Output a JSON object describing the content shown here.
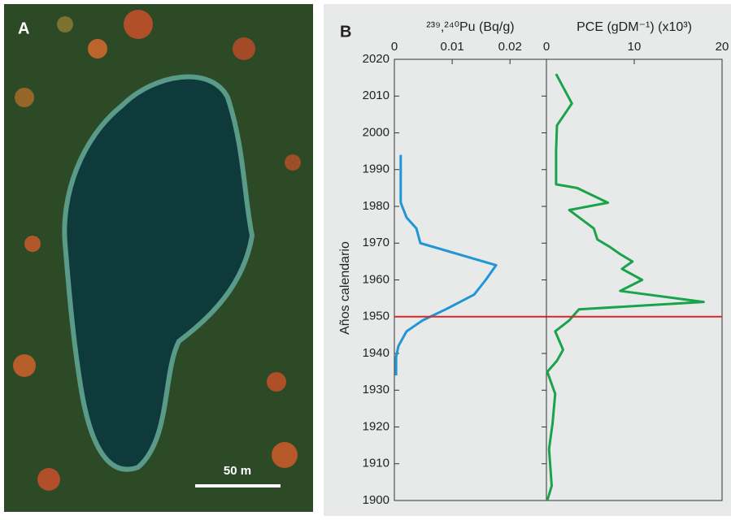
{
  "panel_a": {
    "label": "A",
    "scale_bar": "50 m"
  },
  "panel_b_label": "B",
  "chart_data": [
    {
      "type": "line",
      "orientation": "horizontal",
      "title": "²³⁹,²⁴⁰Pu (Bq/g)",
      "ylabel": "Años calendario",
      "x": [
        1994,
        1981,
        1977,
        1974,
        1970,
        1964,
        1960,
        1956,
        1952,
        1949,
        1946,
        1942,
        1939,
        1934
      ],
      "values": [
        0.0011,
        0.0011,
        0.0021,
        0.0038,
        0.0045,
        0.0176,
        0.0158,
        0.0138,
        0.0089,
        0.0049,
        0.0021,
        0.0007,
        0.0003,
        0.0003
      ],
      "color": "#1f96d6",
      "xlim": [
        0,
        0.0263
      ],
      "xticks": [
        0,
        0.01,
        0.02
      ],
      "ylim": [
        1900,
        2020
      ],
      "yticks": [
        1900,
        1910,
        1920,
        1930,
        1940,
        1950,
        1960,
        1970,
        1980,
        1990,
        2000,
        2010,
        2020
      ],
      "hline": 1950,
      "hline_color": "#d9262b"
    },
    {
      "type": "line",
      "orientation": "horizontal",
      "title": "PCE (gDM⁻¹) (x10³)",
      "x": [
        2016,
        2008,
        2002,
        1995,
        1986,
        1985,
        1981,
        1979,
        1974,
        1971,
        1969,
        1967,
        1965,
        1963,
        1960,
        1957,
        1954,
        1952,
        1949,
        1946,
        1941,
        1938,
        1935,
        1929,
        1921,
        1914,
        1904,
        1900
      ],
      "values": [
        1.1,
        2.9,
        1.2,
        1.1,
        1.1,
        3.5,
        7.0,
        2.6,
        5.4,
        5.8,
        7.2,
        8.4,
        9.8,
        8.6,
        10.9,
        8.4,
        17.9,
        3.7,
        2.6,
        1.0,
        1.9,
        1.2,
        0.1,
        1.0,
        0.7,
        0.3,
        0.6,
        0.1
      ],
      "color": "#1aa34a",
      "xlim": [
        0,
        20
      ],
      "xticks": [
        0,
        10,
        20
      ],
      "ylim": [
        1900,
        2020
      ],
      "hline": 1950,
      "hline_color": "#d9262b"
    }
  ]
}
